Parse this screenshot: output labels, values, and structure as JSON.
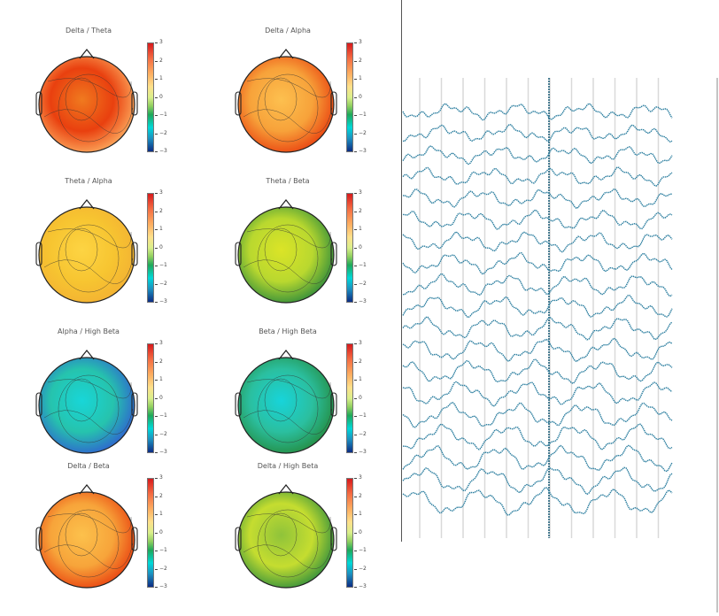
{
  "topomaps": [
    {
      "title": "Delta / Theta",
      "scheme": "hot",
      "colors": [
        "#e9400f",
        "#f07a1f",
        "#fdae61"
      ]
    },
    {
      "title": "Delta / Alpha",
      "scheme": "orange",
      "colors": [
        "#f7a23a",
        "#fdc04f",
        "#e9400f"
      ]
    },
    {
      "title": "Theta / Alpha",
      "scheme": "yellow",
      "colors": [
        "#f7c531",
        "#fdd443",
        "#f3b132"
      ]
    },
    {
      "title": "Theta / Beta",
      "scheme": "green",
      "colors": [
        "#b9d82f",
        "#dbe427",
        "#2c8a3b"
      ]
    },
    {
      "title": "Alpha / High Beta",
      "scheme": "cyan",
      "colors": [
        "#26c3ad",
        "#18d6d8",
        "#2f5fd1"
      ]
    },
    {
      "title": "Beta / High Beta",
      "scheme": "cyan",
      "colors": [
        "#2bbf9f",
        "#17d4da",
        "#248b3f"
      ]
    },
    {
      "title": "Delta / Beta",
      "scheme": "orange",
      "colors": [
        "#f7a43a",
        "#fcc14c",
        "#e9400f"
      ]
    },
    {
      "title": "Delta / High Beta",
      "scheme": "greenish",
      "colors": [
        "#c5dd30",
        "#8fc33a",
        "#2e8d3d"
      ]
    }
  ],
  "colorbar_ticks": [
    "3",
    "2",
    "1",
    "0",
    "−1",
    "−2",
    "−3"
  ],
  "eeg": {
    "channel_count": 19,
    "line_color": "#2d7fa0",
    "grid_color": "#d9d9d9"
  }
}
